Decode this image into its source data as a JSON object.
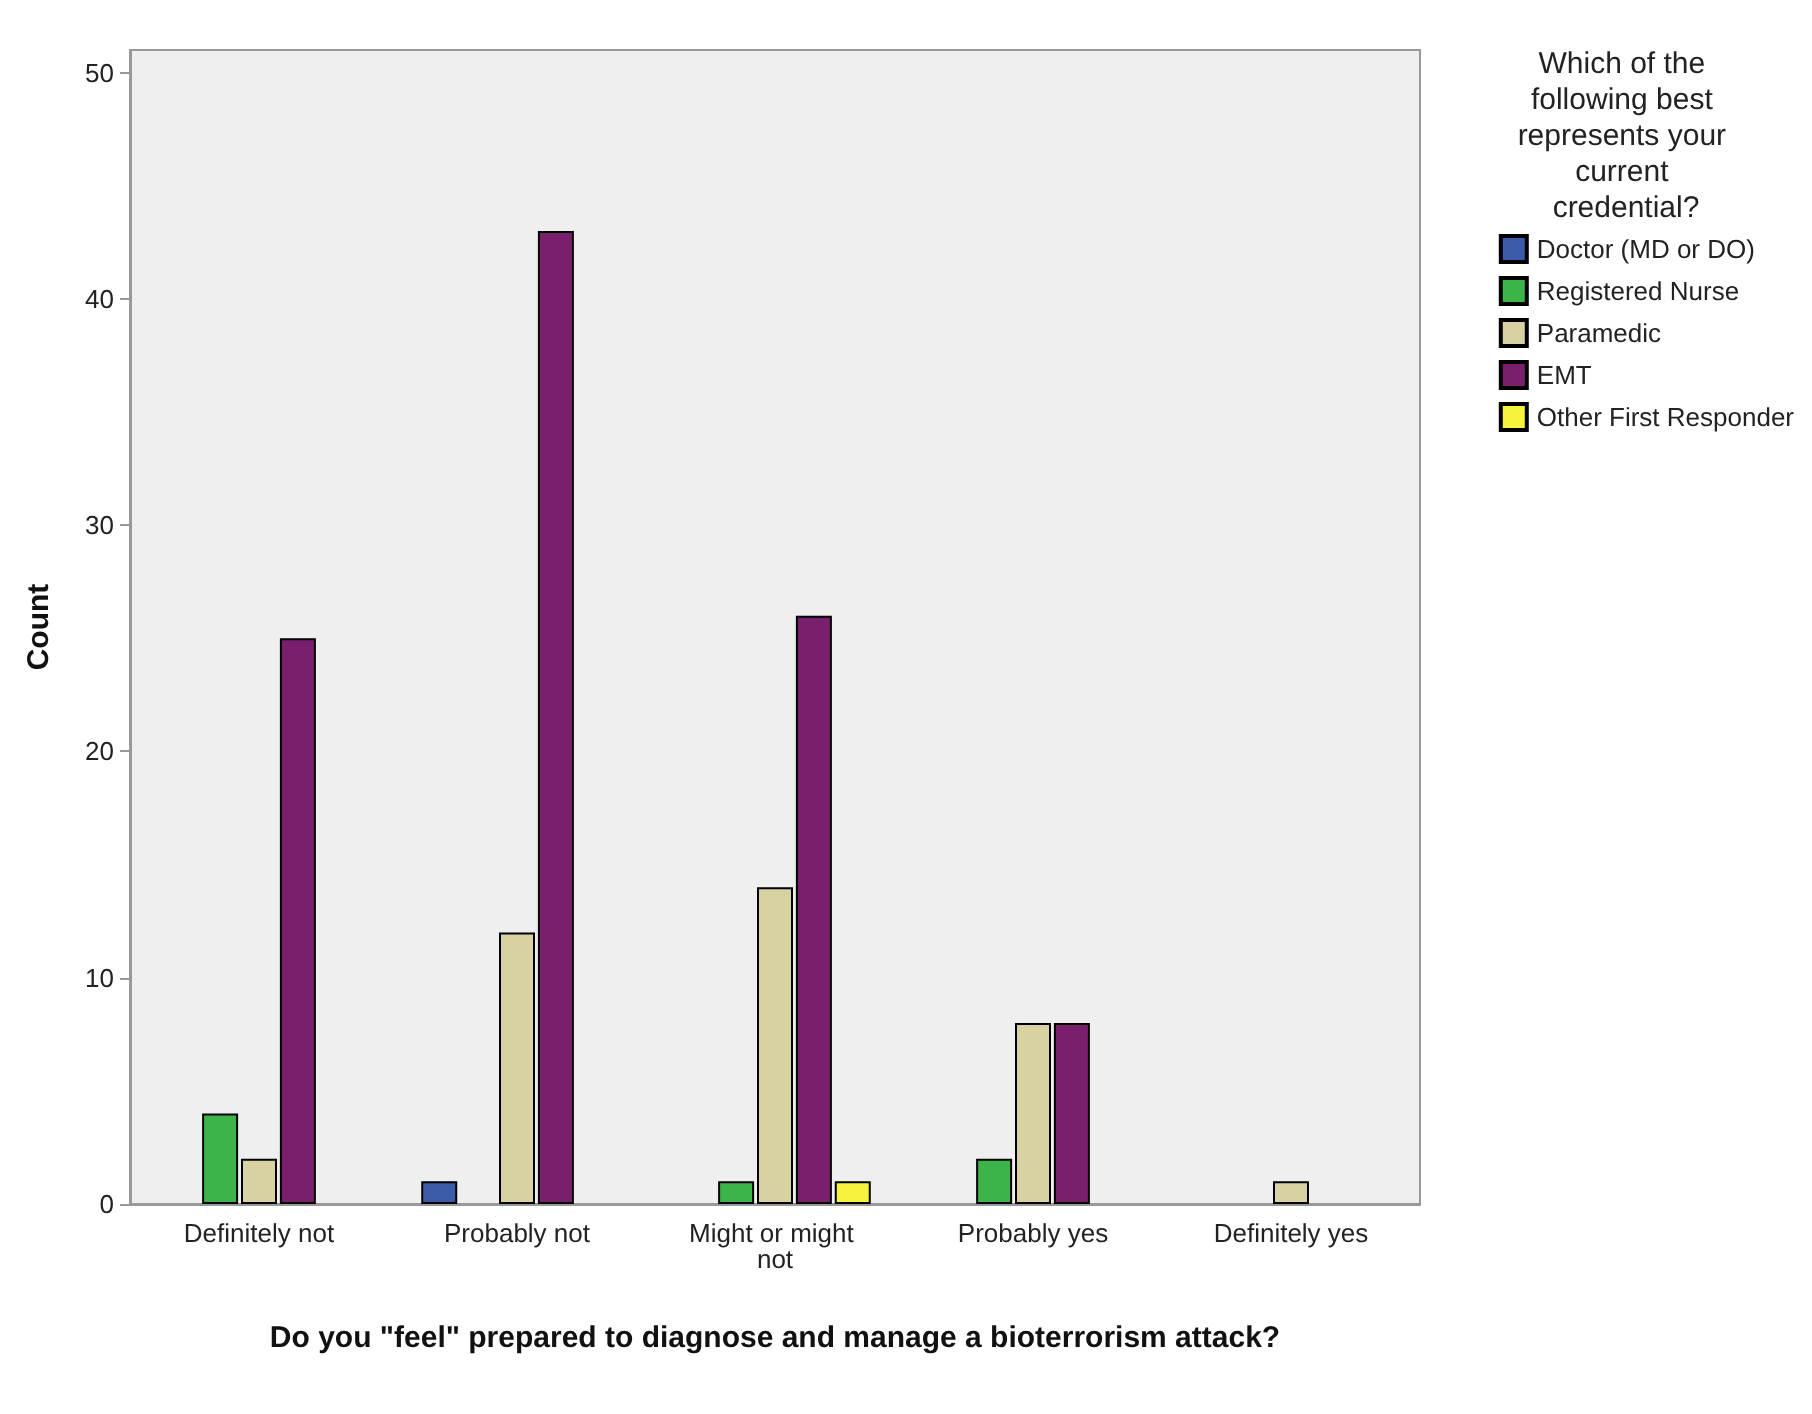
{
  "chart_data": {
    "type": "bar",
    "xlabel": "Do you \"feel\" prepared to diagnose and manage a bioterrorism attack?",
    "ylabel": "Count",
    "legend_title": "Which of the following best represents your current credential?",
    "categories": [
      "Definitely not",
      "Probably not",
      "Might or might not",
      "Probably yes",
      "Definitely yes"
    ],
    "series": [
      {
        "name": "Doctor (MD or DO)",
        "color": "#3b5ba8",
        "values": [
          0,
          1,
          0,
          0,
          0
        ]
      },
      {
        "name": "Registered Nurse",
        "color": "#3cb44a",
        "values": [
          4,
          0,
          1,
          2,
          0
        ]
      },
      {
        "name": "Paramedic",
        "color": "#d8d2a3",
        "values": [
          2,
          12,
          14,
          8,
          1
        ]
      },
      {
        "name": "EMT",
        "color": "#7a1f6e",
        "values": [
          25,
          43,
          26,
          8,
          0
        ]
      },
      {
        "name": "Other First Responder",
        "color": "#f6f33e",
        "values": [
          0,
          0,
          1,
          0,
          0
        ]
      }
    ],
    "ylim": [
      0,
      51
    ],
    "yticks": [
      0,
      10,
      20,
      30,
      40,
      50
    ],
    "grid": false,
    "legend": "top right"
  }
}
